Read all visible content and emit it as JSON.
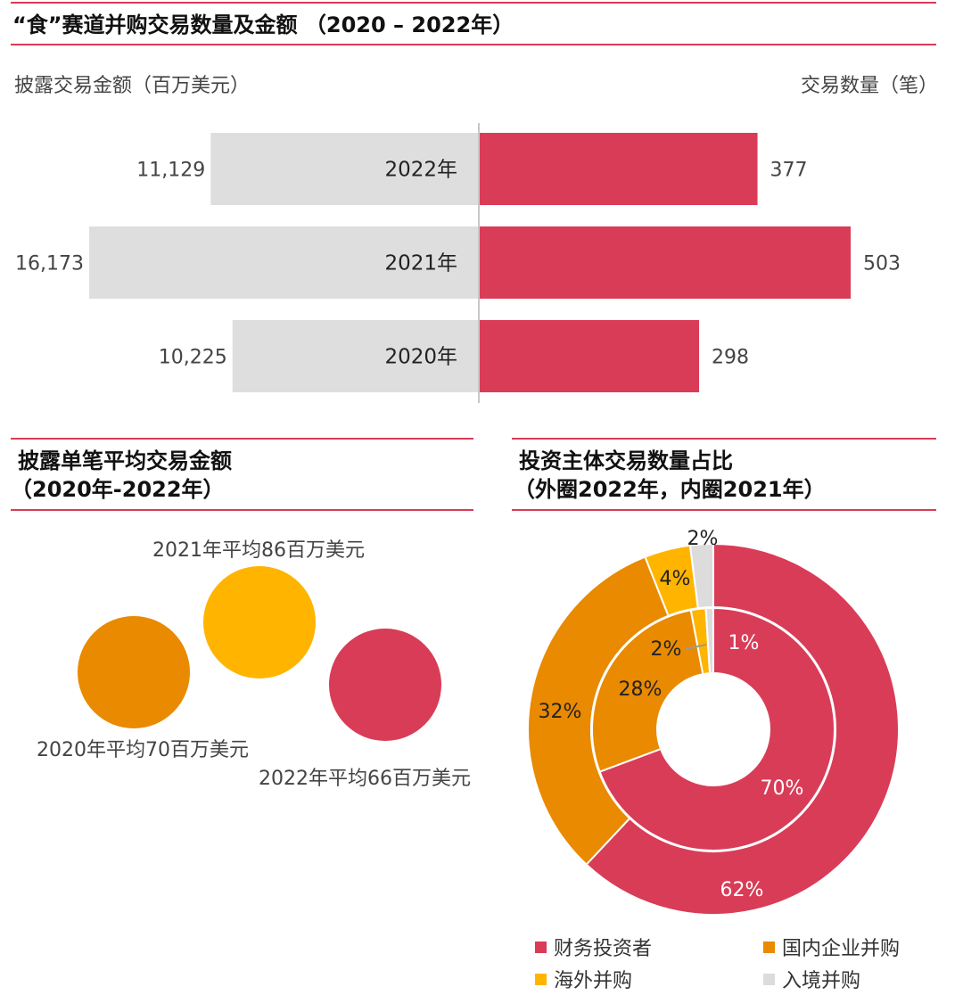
{
  "colors": {
    "accent": "#d93c57",
    "gray_bar": "#dedede",
    "orange": "#e98a00",
    "yellow": "#ffb400",
    "light_gray": "#dcdcdc"
  },
  "section1": {
    "title": "“食”赛道并购交易数量及金额 （2020 – 2022年）",
    "left_label": "披露交易金额（百万美元）",
    "right_label": "交易数量（笔）"
  },
  "section2": {
    "title_line1": "披露单笔平均交易金额",
    "title_line2": "（2020年-2022年）"
  },
  "section3": {
    "title_line1": "投资主体交易数量占比",
    "title_line2": "（外圈2022年，内圈2021年）"
  },
  "chart_data": [
    {
      "type": "bar",
      "categories": [
        "2022年",
        "2021年",
        "2020年"
      ],
      "series": [
        {
          "name": "披露交易金额（百万美元）",
          "values": [
            11129,
            16173,
            10225
          ],
          "labels": [
            "11,129",
            "16,173",
            "10,225"
          ]
        },
        {
          "name": "交易数量（笔）",
          "values": [
            377,
            503,
            298
          ],
          "labels": [
            "377",
            "503",
            "298"
          ]
        }
      ]
    },
    {
      "type": "scatter",
      "title": "披露单笔平均交易金额",
      "points": [
        {
          "label": "2021年平均86百万美元",
          "value": 86,
          "color": "#ffb400"
        },
        {
          "label": "2020年平均70百万美元",
          "value": 70,
          "color": "#e98a00"
        },
        {
          "label": "2022年平均66百万美元",
          "value": 66,
          "color": "#d93c57"
        }
      ]
    },
    {
      "type": "pie",
      "title": "投资主体交易数量占比",
      "categories": [
        "财务投资者",
        "国内企业并购",
        "海外并购",
        "入境并购"
      ],
      "colors": [
        "#d93c57",
        "#e98a00",
        "#ffb400",
        "#dcdcdc"
      ],
      "series": [
        {
          "name": "外圈2022年",
          "values": [
            62,
            32,
            4,
            2
          ],
          "labels": [
            "62%",
            "32%",
            "4%",
            "2%"
          ]
        },
        {
          "name": "内圈2021年",
          "values": [
            70,
            28,
            2,
            1
          ],
          "labels": [
            "70%",
            "28%",
            "2%",
            "1%"
          ]
        }
      ]
    }
  ]
}
